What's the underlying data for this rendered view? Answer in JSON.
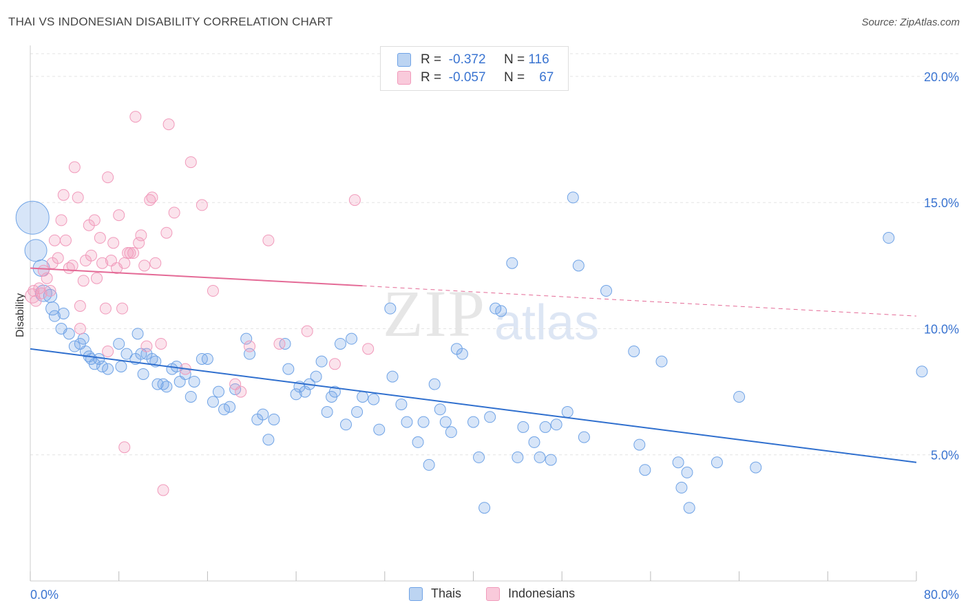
{
  "title": "THAI VS INDONESIAN DISABILITY CORRELATION CHART",
  "source": "Source: ZipAtlas.com",
  "watermark": {
    "zip": "ZIP",
    "atlas": "atlas"
  },
  "legend_top": [
    {
      "r_label": "R =",
      "r_value": "-0.372",
      "n_label": "N =",
      "n_value": "116"
    },
    {
      "r_label": "R =",
      "r_value": "-0.057",
      "n_label": "N =",
      "n_value": "67"
    }
  ],
  "legend_bottom": [
    "Thais",
    "Indonesians"
  ],
  "colors": {
    "thais": "#6fa3e6",
    "thais_line": "#2f6fce",
    "indonesians": "#f19abb",
    "indonesians_line": "#e46a96",
    "axis_label": "#3a74d1"
  },
  "chart_data": {
    "type": "scatter",
    "xlabel": "",
    "ylabel": "Disability",
    "xlim": [
      0,
      80
    ],
    "ylim": [
      0,
      20
    ],
    "x_tick_labels": [
      "0.0%",
      "80.0%"
    ],
    "y_tick_labels": [
      "5.0%",
      "10.0%",
      "15.0%",
      "20.0%"
    ],
    "y_ticks": [
      5,
      10,
      15,
      20
    ],
    "grid": true,
    "legend_position": "top-center",
    "series": [
      {
        "name": "Thais",
        "trend": {
          "x0": 0,
          "y0": 9.2,
          "x1": 80,
          "y1": 4.7
        },
        "points": [
          [
            0.2,
            14.4,
            3
          ],
          [
            0.5,
            13.1,
            2
          ],
          [
            1.0,
            12.4,
            1.5
          ],
          [
            1.2,
            11.4,
            1.5
          ],
          [
            1.8,
            11.3,
            1.2
          ],
          [
            2.0,
            10.8,
            1.2
          ],
          [
            2.2,
            10.5,
            1
          ],
          [
            3.0,
            10.6,
            1
          ],
          [
            2.8,
            10.0,
            1
          ],
          [
            3.5,
            9.8,
            1
          ],
          [
            4.8,
            9.6,
            1
          ],
          [
            4.0,
            9.3,
            1
          ],
          [
            4.5,
            9.4,
            1
          ],
          [
            5.0,
            9.1,
            1
          ],
          [
            5.5,
            8.8,
            1
          ],
          [
            5.3,
            8.9,
            1
          ],
          [
            5.8,
            8.6,
            1
          ],
          [
            6.2,
            8.8,
            1
          ],
          [
            6.5,
            8.5,
            1
          ],
          [
            7.0,
            8.4,
            1
          ],
          [
            8.0,
            9.4,
            1
          ],
          [
            8.2,
            8.5,
            1
          ],
          [
            8.7,
            9.0,
            1
          ],
          [
            9.5,
            8.8,
            1
          ],
          [
            9.7,
            9.8,
            1
          ],
          [
            10.0,
            9.0,
            1
          ],
          [
            10.2,
            8.2,
            1
          ],
          [
            10.5,
            9.0,
            1
          ],
          [
            11.0,
            8.8,
            1
          ],
          [
            11.3,
            8.7,
            1
          ],
          [
            11.5,
            7.8,
            1
          ],
          [
            12.0,
            7.8,
            1
          ],
          [
            12.3,
            7.7,
            1
          ],
          [
            12.8,
            8.4,
            1
          ],
          [
            13.2,
            8.5,
            1
          ],
          [
            13.5,
            7.9,
            1
          ],
          [
            14.0,
            8.2,
            1
          ],
          [
            14.5,
            7.3,
            1
          ],
          [
            14.8,
            7.9,
            1
          ],
          [
            15.5,
            8.8,
            1
          ],
          [
            16.0,
            8.8,
            1
          ],
          [
            16.5,
            7.1,
            1
          ],
          [
            17.0,
            7.5,
            1
          ],
          [
            17.5,
            6.8,
            1
          ],
          [
            18.0,
            6.9,
            1
          ],
          [
            18.5,
            7.6,
            1
          ],
          [
            19.5,
            9.6,
            1
          ],
          [
            19.8,
            9.0,
            1
          ],
          [
            20.5,
            6.4,
            1
          ],
          [
            21.0,
            6.6,
            1
          ],
          [
            21.5,
            5.6,
            1
          ],
          [
            22.0,
            6.4,
            1
          ],
          [
            23.0,
            9.4,
            1
          ],
          [
            23.3,
            8.4,
            1
          ],
          [
            24.0,
            7.4,
            1
          ],
          [
            24.3,
            7.7,
            1
          ],
          [
            24.8,
            7.5,
            1
          ],
          [
            25.2,
            7.8,
            1
          ],
          [
            25.8,
            8.1,
            1
          ],
          [
            26.3,
            8.7,
            1
          ],
          [
            26.8,
            6.7,
            1
          ],
          [
            27.2,
            7.3,
            1
          ],
          [
            27.5,
            7.5,
            1
          ],
          [
            28.0,
            9.4,
            1
          ],
          [
            28.5,
            6.2,
            1
          ],
          [
            29.0,
            9.6,
            1
          ],
          [
            29.5,
            6.7,
            1
          ],
          [
            30.0,
            7.3,
            1
          ],
          [
            31.0,
            7.2,
            1
          ],
          [
            31.5,
            6.0,
            1
          ],
          [
            32.5,
            10.8,
            1
          ],
          [
            32.7,
            8.1,
            1
          ],
          [
            33.5,
            7.0,
            1
          ],
          [
            34.0,
            6.3,
            1
          ],
          [
            35.0,
            5.5,
            1
          ],
          [
            35.5,
            6.3,
            1
          ],
          [
            36.0,
            4.6,
            1
          ],
          [
            36.5,
            7.8,
            1
          ],
          [
            37.0,
            6.8,
            1
          ],
          [
            37.5,
            6.3,
            1
          ],
          [
            38.0,
            5.9,
            1
          ],
          [
            38.5,
            9.2,
            1
          ],
          [
            39.0,
            9.0,
            1
          ],
          [
            40.0,
            6.3,
            1
          ],
          [
            40.5,
            4.9,
            1
          ],
          [
            41.5,
            6.5,
            1
          ],
          [
            42.0,
            10.8,
            1
          ],
          [
            42.5,
            10.7,
            1
          ],
          [
            43.5,
            12.6,
            1
          ],
          [
            44.0,
            4.9,
            1
          ],
          [
            44.5,
            6.1,
            1
          ],
          [
            45.5,
            5.5,
            1
          ],
          [
            46.0,
            4.9,
            1
          ],
          [
            46.5,
            6.1,
            1
          ],
          [
            47.0,
            4.8,
            1
          ],
          [
            47.5,
            6.2,
            1
          ],
          [
            48.5,
            6.7,
            1
          ],
          [
            49.5,
            12.5,
            1
          ],
          [
            50.0,
            5.7,
            1
          ],
          [
            49.0,
            15.2,
            1
          ],
          [
            52.0,
            11.5,
            1
          ],
          [
            54.5,
            9.1,
            1
          ],
          [
            55.0,
            5.4,
            1
          ],
          [
            55.5,
            4.4,
            1
          ],
          [
            57.0,
            8.7,
            1
          ],
          [
            58.5,
            4.7,
            1
          ],
          [
            58.8,
            3.7,
            1
          ],
          [
            59.3,
            4.3,
            1
          ],
          [
            59.5,
            2.9,
            1
          ],
          [
            62.0,
            4.7,
            1
          ],
          [
            64.0,
            7.3,
            1
          ],
          [
            65.5,
            4.5,
            1
          ],
          [
            77.5,
            13.6,
            1
          ],
          [
            80.5,
            8.3,
            1
          ],
          [
            41.0,
            2.9,
            1
          ]
        ]
      },
      {
        "name": "Indonesians",
        "trend": {
          "x0": 0,
          "y0": 12.4,
          "x1": 30,
          "y1": 11.7,
          "dashed_to": 80,
          "dashed_y": 10.5
        },
        "points": [
          [
            0.2,
            11.3,
            1.3
          ],
          [
            0.3,
            11.5,
            1
          ],
          [
            0.5,
            11.1,
            1
          ],
          [
            0.8,
            11.6,
            1
          ],
          [
            1.0,
            11.4,
            1
          ],
          [
            1.2,
            12.3,
            1
          ],
          [
            1.5,
            12.0,
            1
          ],
          [
            1.8,
            11.5,
            1
          ],
          [
            2.0,
            12.6,
            1
          ],
          [
            2.2,
            13.5,
            1
          ],
          [
            2.5,
            12.8,
            1
          ],
          [
            2.8,
            14.3,
            1
          ],
          [
            3.0,
            15.3,
            1
          ],
          [
            3.2,
            13.5,
            1
          ],
          [
            3.5,
            12.4,
            1
          ],
          [
            3.8,
            12.5,
            1
          ],
          [
            4.0,
            16.4,
            1
          ],
          [
            4.3,
            15.2,
            1
          ],
          [
            4.5,
            10.9,
            1
          ],
          [
            4.8,
            11.9,
            1
          ],
          [
            5.0,
            12.7,
            1
          ],
          [
            5.3,
            14.1,
            1
          ],
          [
            5.5,
            12.9,
            1
          ],
          [
            5.8,
            14.3,
            1
          ],
          [
            6.0,
            12.0,
            1
          ],
          [
            6.3,
            13.6,
            1
          ],
          [
            6.5,
            12.6,
            1
          ],
          [
            6.8,
            10.8,
            1
          ],
          [
            7.0,
            16.0,
            1
          ],
          [
            7.3,
            12.7,
            1
          ],
          [
            7.5,
            13.4,
            1
          ],
          [
            7.8,
            12.4,
            1
          ],
          [
            8.0,
            14.5,
            1
          ],
          [
            8.3,
            10.8,
            1
          ],
          [
            8.5,
            12.6,
            1
          ],
          [
            8.8,
            13.0,
            1
          ],
          [
            9.0,
            13.0,
            1
          ],
          [
            9.3,
            13.0,
            1
          ],
          [
            9.5,
            18.4,
            1
          ],
          [
            9.8,
            13.4,
            1
          ],
          [
            10.0,
            13.7,
            1
          ],
          [
            10.3,
            12.5,
            1
          ],
          [
            10.5,
            9.3,
            1
          ],
          [
            10.8,
            15.1,
            1
          ],
          [
            11.0,
            15.2,
            1
          ],
          [
            11.3,
            12.6,
            1
          ],
          [
            11.8,
            9.4,
            1
          ],
          [
            12.3,
            13.8,
            1
          ],
          [
            12.5,
            18.1,
            1
          ],
          [
            13.0,
            14.6,
            1
          ],
          [
            14.0,
            8.4,
            1
          ],
          [
            14.5,
            16.6,
            1
          ],
          [
            15.5,
            14.9,
            1
          ],
          [
            16.5,
            11.5,
            1
          ],
          [
            18.5,
            7.8,
            1
          ],
          [
            19.0,
            7.5,
            1
          ],
          [
            19.8,
            9.3,
            1
          ],
          [
            21.5,
            13.5,
            1
          ],
          [
            22.5,
            9.4,
            1
          ],
          [
            8.5,
            5.3,
            1
          ],
          [
            12.0,
            3.6,
            1
          ],
          [
            25.0,
            9.9,
            1
          ],
          [
            27.5,
            8.6,
            1
          ],
          [
            30.5,
            9.2,
            1
          ],
          [
            29.3,
            15.1,
            1
          ],
          [
            7.0,
            9.1,
            1
          ],
          [
            4.5,
            10.0,
            1
          ]
        ]
      }
    ]
  }
}
